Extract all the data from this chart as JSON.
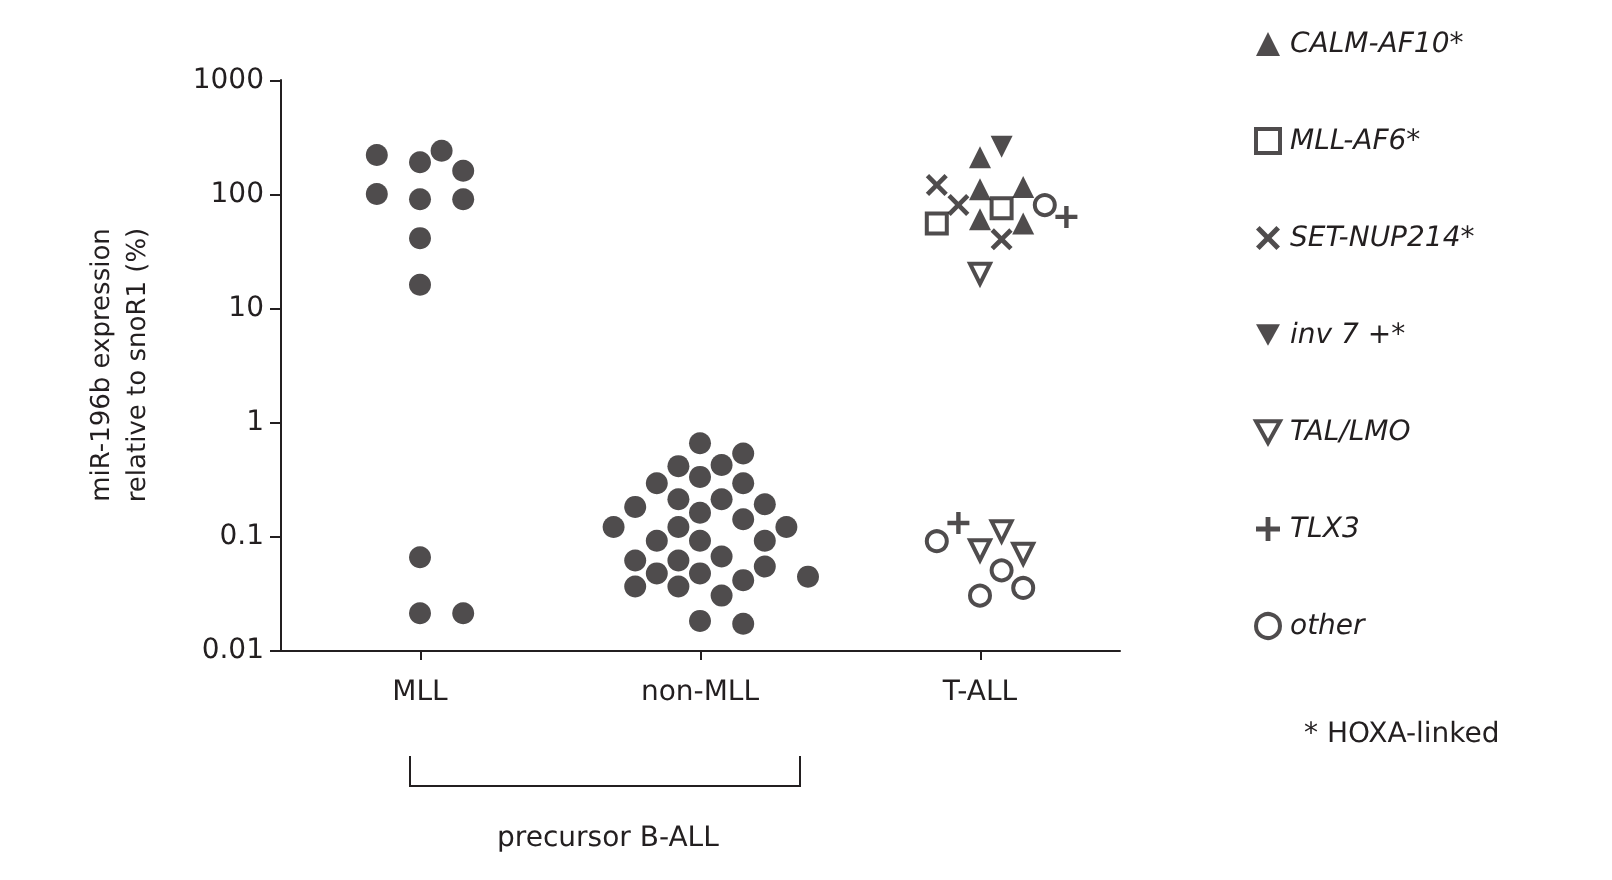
{
  "chart_data": {
    "type": "scatter",
    "ylabel": "miR-196b expression\nrelative to snoR1 (%)",
    "categories": [
      "MLL",
      "non-MLL",
      "T-ALL"
    ],
    "log": "y",
    "ylim": [
      0.01,
      1000
    ],
    "yticks": [
      0.01,
      0.1,
      1,
      10,
      100,
      1000
    ],
    "grid": false,
    "legend": "right",
    "annotations": [
      "* HOXA-linked",
      "precursor B-ALL"
    ],
    "series": [
      {
        "color": "#231f20",
        "marker": "circle",
        "x": [
          "MLL",
          "MLL",
          "MLL",
          "MLL",
          "MLL",
          "MLL",
          "MLL",
          "MLL",
          "MLL",
          "MLL",
          "MLL",
          "MLL"
        ],
        "values": [
          190,
          240,
          220,
          160,
          90,
          100,
          90,
          41,
          16,
          0.065,
          0.021,
          0.021
        ]
      },
      {
        "color": "#231f20",
        "marker": "circle",
        "x": [
          "non-MLL",
          "non-MLL",
          "non-MLL",
          "non-MLL",
          "non-MLL",
          "non-MLL",
          "non-MLL",
          "non-MLL",
          "non-MLL",
          "non-MLL",
          "non-MLL",
          "non-MLL",
          "non-MLL",
          "non-MLL",
          "non-MLL",
          "non-MLL",
          "non-MLL",
          "non-MLL",
          "non-MLL",
          "non-MLL",
          "non-MLL",
          "non-MLL",
          "non-MLL",
          "non-MLL",
          "non-MLL",
          "non-MLL",
          "non-MLL",
          "non-MLL",
          "non-MLL",
          "non-MLL",
          "non-MLL",
          "non-MLL"
        ],
        "values": [
          0.65,
          0.53,
          0.42,
          0.41,
          0.33,
          0.29,
          0.29,
          0.21,
          0.21,
          0.19,
          0.18,
          0.16,
          0.14,
          0.12,
          0.12,
          0.12,
          0.091,
          0.091,
          0.091,
          0.066,
          0.061,
          0.061,
          0.054,
          0.047,
          0.047,
          0.041,
          0.036,
          0.036,
          0.03,
          0.018,
          0.017,
          0.044
        ]
      },
      {
        "name": "CALM-AF10*",
        "color": "#231f20",
        "marker": "triangle",
        "x": [
          "T-ALL",
          "T-ALL",
          "T-ALL",
          "T-ALL",
          "T-ALL"
        ],
        "values": [
          210,
          110,
          60,
          55,
          115
        ]
      },
      {
        "name": "MLL-AF6*",
        "color": "#231f20",
        "marker": "square-open",
        "x": [
          "T-ALL",
          "T-ALL"
        ],
        "values": [
          55,
          75
        ]
      },
      {
        "name": "SET-NUP214*",
        "color": "#231f20",
        "marker": "cross",
        "x": [
          "T-ALL",
          "T-ALL",
          "T-ALL"
        ],
        "values": [
          120,
          80,
          40
        ]
      },
      {
        "name": "inv 7 +*",
        "color": "#231f20",
        "marker": "triangle-down",
        "x": [
          "T-ALL"
        ],
        "values": [
          260
        ]
      },
      {
        "name": "TAL/LMO",
        "color": "#231f20",
        "marker": "triangle-down-open",
        "x": [
          "T-ALL",
          "T-ALL",
          "T-ALL",
          "T-ALL"
        ],
        "values": [
          20,
          0.075,
          0.11,
          0.07
        ]
      },
      {
        "name": "TLX3",
        "color": "#231f20",
        "marker": "plus",
        "x": [
          "T-ALL",
          "T-ALL"
        ],
        "values": [
          63,
          0.13
        ]
      },
      {
        "name": "other",
        "color": "#231f20",
        "marker": "circle-open",
        "x": [
          "T-ALL",
          "T-ALL",
          "T-ALL",
          "T-ALL",
          "T-ALL"
        ],
        "values": [
          80,
          0.09,
          0.03,
          0.05,
          0.035
        ]
      }
    ]
  }
}
